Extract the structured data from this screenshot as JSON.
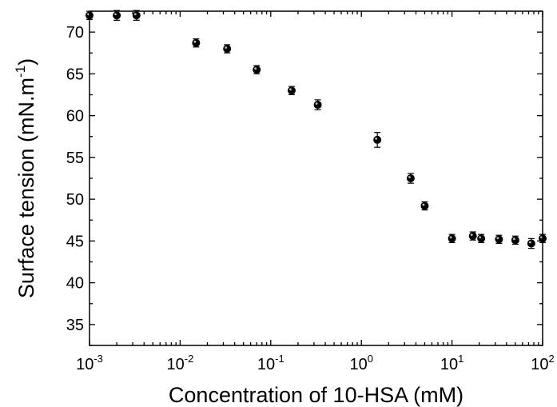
{
  "chart_data": {
    "type": "scatter",
    "title": "",
    "xlabel": "Concentration of 10-HSA (mM)",
    "ylabel_main": "Surface tension (mN.m",
    "ylabel_sup": "-1",
    "ylabel_close": ")",
    "x_scale": "log",
    "xlim": [
      0.001,
      100
    ],
    "ylim": [
      32.5,
      72.5
    ],
    "x_ticks": [
      {
        "value": 0.001,
        "base": "10",
        "exp": "-3"
      },
      {
        "value": 0.01,
        "base": "10",
        "exp": "-2"
      },
      {
        "value": 0.1,
        "base": "10",
        "exp": "-1"
      },
      {
        "value": 1,
        "base": "10",
        "exp": "0"
      },
      {
        "value": 10,
        "base": "10",
        "exp": "1"
      },
      {
        "value": 100,
        "base": "10",
        "exp": "2"
      }
    ],
    "y_ticks": [
      {
        "value": 35,
        "label": "35"
      },
      {
        "value": 40,
        "label": "40"
      },
      {
        "value": 45,
        "label": "45"
      },
      {
        "value": 50,
        "label": "50"
      },
      {
        "value": 55,
        "label": "55"
      },
      {
        "value": 60,
        "label": "60"
      },
      {
        "value": 65,
        "label": "65"
      },
      {
        "value": 70,
        "label": "70"
      }
    ],
    "grid": false,
    "legend": "none",
    "marker_color": "#000000",
    "series": [
      {
        "points": [
          {
            "x": 0.001,
            "y": 72.0,
            "err": 0.2
          },
          {
            "x": 0.002,
            "y": 72.0,
            "err": 0.3
          },
          {
            "x": 0.0033,
            "y": 72.0,
            "err": 0.3
          },
          {
            "x": 0.015,
            "y": 68.7,
            "err": 0.2
          },
          {
            "x": 0.033,
            "y": 68.0,
            "err": 0.2
          },
          {
            "x": 0.07,
            "y": 65.5,
            "err": 0.2
          },
          {
            "x": 0.17,
            "y": 63.0,
            "err": 0.2
          },
          {
            "x": 0.33,
            "y": 61.3,
            "err": 0.3
          },
          {
            "x": 1.5,
            "y": 57.1,
            "err": 0.6
          },
          {
            "x": 3.5,
            "y": 52.5,
            "err": 0.3
          },
          {
            "x": 5.0,
            "y": 49.2,
            "err": 0.2
          },
          {
            "x": 10.0,
            "y": 45.3,
            "err": 0.2
          },
          {
            "x": 17.0,
            "y": 45.6,
            "err": 0.2
          },
          {
            "x": 21.0,
            "y": 45.3,
            "err": 0.2
          },
          {
            "x": 33.0,
            "y": 45.2,
            "err": 0.2
          },
          {
            "x": 50.0,
            "y": 45.1,
            "err": 0.2
          },
          {
            "x": 75.0,
            "y": 44.7,
            "err": 0.3
          },
          {
            "x": 100.0,
            "y": 45.3,
            "err": 0.2
          }
        ]
      }
    ]
  }
}
